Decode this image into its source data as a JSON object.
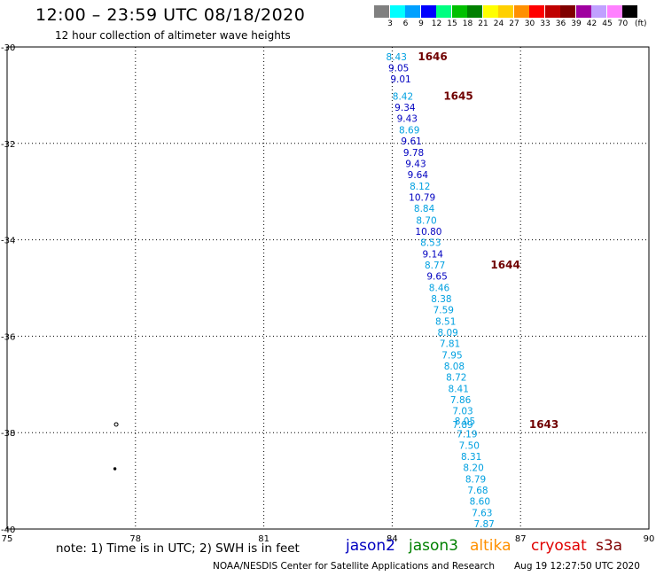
{
  "header": {
    "title": "12:00 – 23:59 UTC 08/18/2020",
    "subtitle": "12 hour collection of altimeter wave heights"
  },
  "colorbar": {
    "unit": "(ft)",
    "bins": [
      {
        "label": "3",
        "color": "#808080"
      },
      {
        "label": "6",
        "color": "#00ffff"
      },
      {
        "label": "9",
        "color": "#00a0ff"
      },
      {
        "label": "12",
        "color": "#0000ff"
      },
      {
        "label": "15",
        "color": "#00ff80"
      },
      {
        "label": "18",
        "color": "#00c000"
      },
      {
        "label": "21",
        "color": "#008000"
      },
      {
        "label": "24",
        "color": "#ffff00"
      },
      {
        "label": "27",
        "color": "#ffd000"
      },
      {
        "label": "30",
        "color": "#ff9000"
      },
      {
        "label": "33",
        "color": "#ff0000"
      },
      {
        "label": "36",
        "color": "#c00000"
      },
      {
        "label": "39",
        "color": "#800000"
      },
      {
        "label": "42",
        "color": "#a000a0"
      },
      {
        "label": "45",
        "color": "#c0a0ff"
      },
      {
        "label": "70",
        "color": "#ff80ff"
      },
      {
        "label": "",
        "color": "#000000"
      }
    ]
  },
  "chart_data": {
    "type": "scatter",
    "xlim": [
      75,
      90
    ],
    "ylim": [
      -40,
      -30
    ],
    "x_ticks": [
      "75",
      "78",
      "81",
      "84",
      "87",
      "90"
    ],
    "y_ticks": [
      "-30",
      "-32",
      "-34",
      "-36",
      "-38",
      "-40"
    ],
    "grid": true,
    "colors": {
      "cyan": "#00a0e0",
      "blue": "#0000c0",
      "time": "#700000"
    },
    "points": [
      {
        "lon": 84.1,
        "lat": -30.2,
        "label": "8.43",
        "c": "cyan"
      },
      {
        "lon": 84.15,
        "lat": -30.43,
        "label": "9.05",
        "c": "blue"
      },
      {
        "lon": 84.2,
        "lat": -30.66,
        "label": "9.01",
        "c": "blue"
      },
      {
        "lon": 84.25,
        "lat": -31.02,
        "label": "8.42",
        "c": "cyan"
      },
      {
        "lon": 84.3,
        "lat": -31.25,
        "label": "9.34",
        "c": "blue"
      },
      {
        "lon": 84.35,
        "lat": -31.48,
        "label": "9.43",
        "c": "blue"
      },
      {
        "lon": 84.4,
        "lat": -31.72,
        "label": "8.69",
        "c": "cyan"
      },
      {
        "lon": 84.45,
        "lat": -31.95,
        "label": "9.61",
        "c": "blue"
      },
      {
        "lon": 84.5,
        "lat": -32.19,
        "label": "9.78",
        "c": "blue"
      },
      {
        "lon": 84.55,
        "lat": -32.42,
        "label": "9.43",
        "c": "blue"
      },
      {
        "lon": 84.6,
        "lat": -32.65,
        "label": "9.64",
        "c": "blue"
      },
      {
        "lon": 84.65,
        "lat": -32.89,
        "label": "8.12",
        "c": "cyan"
      },
      {
        "lon": 84.7,
        "lat": -33.12,
        "label": "10.79",
        "c": "blue"
      },
      {
        "lon": 84.75,
        "lat": -33.35,
        "label": "8.84",
        "c": "cyan"
      },
      {
        "lon": 84.8,
        "lat": -33.59,
        "label": "8.70",
        "c": "cyan"
      },
      {
        "lon": 84.85,
        "lat": -33.82,
        "label": "10.80",
        "c": "blue"
      },
      {
        "lon": 84.9,
        "lat": -34.05,
        "label": "8.53",
        "c": "cyan"
      },
      {
        "lon": 84.95,
        "lat": -34.29,
        "label": "9.14",
        "c": "blue"
      },
      {
        "lon": 85.0,
        "lat": -34.52,
        "label": "8.77",
        "c": "cyan"
      },
      {
        "lon": 85.05,
        "lat": -34.75,
        "label": "9.65",
        "c": "blue"
      },
      {
        "lon": 85.1,
        "lat": -34.99,
        "label": "8.46",
        "c": "cyan"
      },
      {
        "lon": 85.15,
        "lat": -35.22,
        "label": "8.38",
        "c": "cyan"
      },
      {
        "lon": 85.2,
        "lat": -35.45,
        "label": "7.59",
        "c": "cyan"
      },
      {
        "lon": 85.25,
        "lat": -35.69,
        "label": "8.51",
        "c": "cyan"
      },
      {
        "lon": 85.3,
        "lat": -35.92,
        "label": "8.09",
        "c": "cyan"
      },
      {
        "lon": 85.35,
        "lat": -36.15,
        "label": "7.81",
        "c": "cyan"
      },
      {
        "lon": 85.4,
        "lat": -36.39,
        "label": "7.95",
        "c": "cyan"
      },
      {
        "lon": 85.45,
        "lat": -36.62,
        "label": "8.08",
        "c": "cyan"
      },
      {
        "lon": 85.5,
        "lat": -36.85,
        "label": "8.72",
        "c": "cyan"
      },
      {
        "lon": 85.55,
        "lat": -37.09,
        "label": "8.41",
        "c": "cyan"
      },
      {
        "lon": 85.6,
        "lat": -37.32,
        "label": "7.86",
        "c": "cyan"
      },
      {
        "lon": 85.65,
        "lat": -37.55,
        "label": "7.03",
        "c": "cyan"
      },
      {
        "lon": 85.7,
        "lat": -37.76,
        "label": "8.05",
        "c": "cyan"
      },
      {
        "lon": 85.65,
        "lat": -37.83,
        "label": "7.89",
        "c": "cyan"
      },
      {
        "lon": 85.75,
        "lat": -38.02,
        "label": "7.19",
        "c": "cyan"
      },
      {
        "lon": 85.8,
        "lat": -38.26,
        "label": "7.50",
        "c": "cyan"
      },
      {
        "lon": 85.85,
        "lat": -38.49,
        "label": "8.31",
        "c": "cyan"
      },
      {
        "lon": 85.9,
        "lat": -38.72,
        "label": "8.20",
        "c": "cyan"
      },
      {
        "lon": 85.95,
        "lat": -38.96,
        "label": "8.79",
        "c": "cyan"
      },
      {
        "lon": 86.0,
        "lat": -39.19,
        "label": "7.68",
        "c": "cyan"
      },
      {
        "lon": 86.05,
        "lat": -39.42,
        "label": "8.60",
        "c": "cyan"
      },
      {
        "lon": 86.1,
        "lat": -39.66,
        "label": "7.63",
        "c": "cyan"
      },
      {
        "lon": 86.15,
        "lat": -39.89,
        "label": "7.87",
        "c": "cyan"
      }
    ],
    "time_labels": [
      {
        "lon": 84.6,
        "lat": -30.2,
        "label": "1646"
      },
      {
        "lon": 85.2,
        "lat": -31.02,
        "label": "1645"
      },
      {
        "lon": 86.3,
        "lat": -34.52,
        "label": "1644"
      },
      {
        "lon": 87.2,
        "lat": -37.83,
        "label": "1643"
      }
    ],
    "islands": [
      {
        "lon": 77.55,
        "lat": -37.83
      },
      {
        "lon": 77.52,
        "lat": -38.75
      }
    ]
  },
  "footer": {
    "note": "note:  1) Time is in UTC;  2) SWH is in feet",
    "satellites": [
      {
        "name": "jason2",
        "color": "#0000c0"
      },
      {
        "name": "jason3",
        "color": "#008000"
      },
      {
        "name": "altika",
        "color": "#ff9000"
      },
      {
        "name": "cryosat",
        "color": "#e00000"
      },
      {
        "name": "s3a",
        "color": "#800000"
      }
    ],
    "credit": "NOAA/NESDIS Center for Satellite Applications and Research",
    "timestamp": "Aug 19 12:27:50 UTC 2020"
  }
}
